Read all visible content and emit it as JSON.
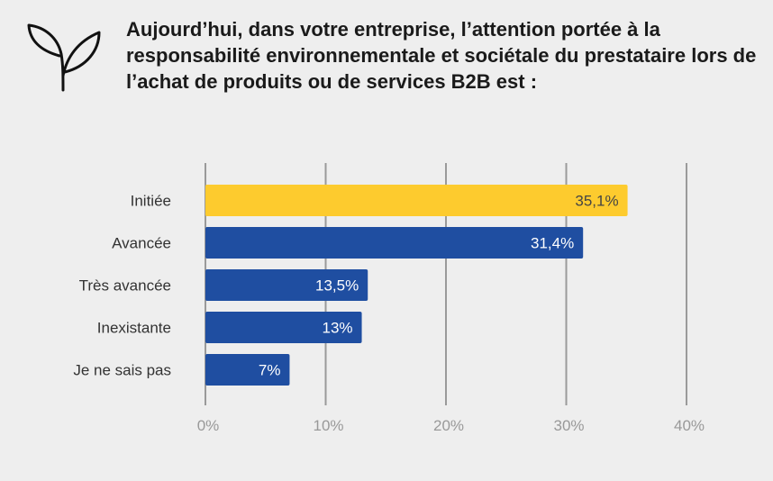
{
  "title": "Aujourd’hui, dans votre entreprise, l’attention portée à la responsabilité environnementale et sociétale du prestataire lors de l’achat de produits ou de services B2B est :",
  "icon": "plant-sprout-icon",
  "colors": {
    "background": "#eeeeee",
    "highlight_bar": "#fdcb2e",
    "bar": "#1f4ea1",
    "grid": "#9a9a9a",
    "highlight_label": "#444444",
    "bar_label": "#ffffff"
  },
  "chart_data": {
    "type": "bar",
    "orientation": "horizontal",
    "categories": [
      "Initiée",
      "Avancée",
      "Très avancée",
      "Inexistante",
      "Je ne sais pas"
    ],
    "values": [
      35.1,
      31.4,
      13.5,
      13,
      7
    ],
    "value_labels": [
      "35,1%",
      "31,4%",
      "13,5%",
      "13%",
      "7%"
    ],
    "highlighted_index": 0,
    "xlim": [
      0,
      40
    ],
    "xticks": [
      0,
      10,
      20,
      30,
      40
    ],
    "xtick_labels": [
      "0%",
      "10%",
      "20%",
      "30%",
      "40%"
    ],
    "grid": true,
    "xlabel": "",
    "ylabel": ""
  }
}
